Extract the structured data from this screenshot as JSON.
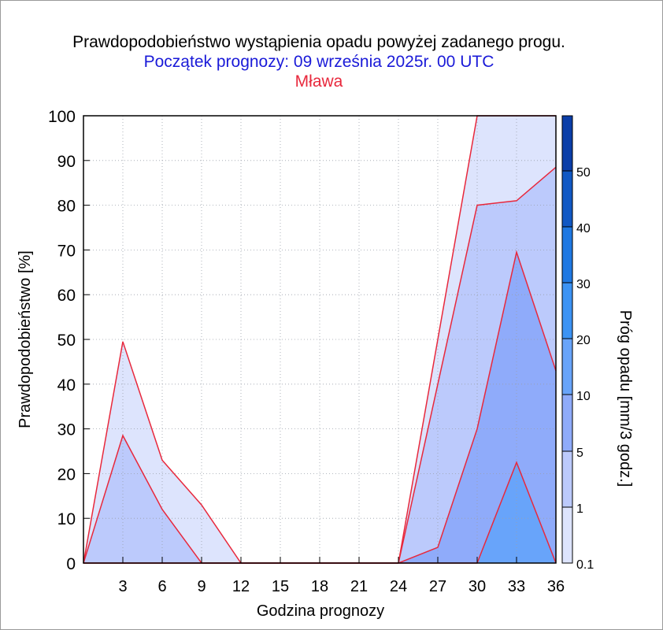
{
  "chart_data": {
    "type": "area",
    "title": "Prawdopodobieństwo wystąpienia opadu powyżej zadanego progu.",
    "subtitle": "Początek prognozy: 09 września 2025r. 00 UTC",
    "location": "Mława",
    "xlabel": "Godzina prognozy",
    "ylabel": "Prawdopodobieństwo [%]",
    "colorbar_label": "Próg opadu [mm/3 godz.]",
    "xlim": [
      0,
      36
    ],
    "ylim": [
      0,
      100
    ],
    "xticks": [
      3,
      6,
      9,
      12,
      15,
      18,
      21,
      24,
      27,
      30,
      33,
      36
    ],
    "yticks": [
      0,
      10,
      20,
      30,
      40,
      50,
      60,
      70,
      80,
      90,
      100
    ],
    "grid": true,
    "x": [
      0,
      3,
      6,
      9,
      12,
      15,
      18,
      21,
      24,
      27,
      30,
      33,
      36
    ],
    "series": [
      {
        "name": "0.1",
        "color": "#dde4fd",
        "values": [
          0,
          49.5,
          23,
          13,
          0,
          0,
          0,
          0,
          0,
          50,
          100,
          100,
          100
        ]
      },
      {
        "name": "1",
        "color": "#bccafc",
        "values": [
          0,
          28.5,
          12,
          0,
          0,
          0,
          0,
          0,
          0,
          40,
          80,
          81,
          88.5
        ]
      },
      {
        "name": "5",
        "color": "#8fabfa",
        "values": [
          0,
          0,
          0,
          0,
          0,
          0,
          0,
          0,
          0,
          3.5,
          30,
          69.5,
          43
        ]
      },
      {
        "name": "10",
        "color": "#68a4fa",
        "values": [
          0,
          0,
          0,
          0,
          0,
          0,
          0,
          0,
          0,
          0,
          0,
          22.5,
          0
        ]
      }
    ],
    "colorbar": {
      "levels": [
        "0.1",
        "1",
        "5",
        "10",
        "20",
        "30",
        "40",
        "50"
      ],
      "colors": [
        "#dde4fd",
        "#bccafc",
        "#8fabfa",
        "#68a4fa",
        "#3c93f4",
        "#1f78e2",
        "#1158c4",
        "#0b3ea8"
      ]
    }
  }
}
